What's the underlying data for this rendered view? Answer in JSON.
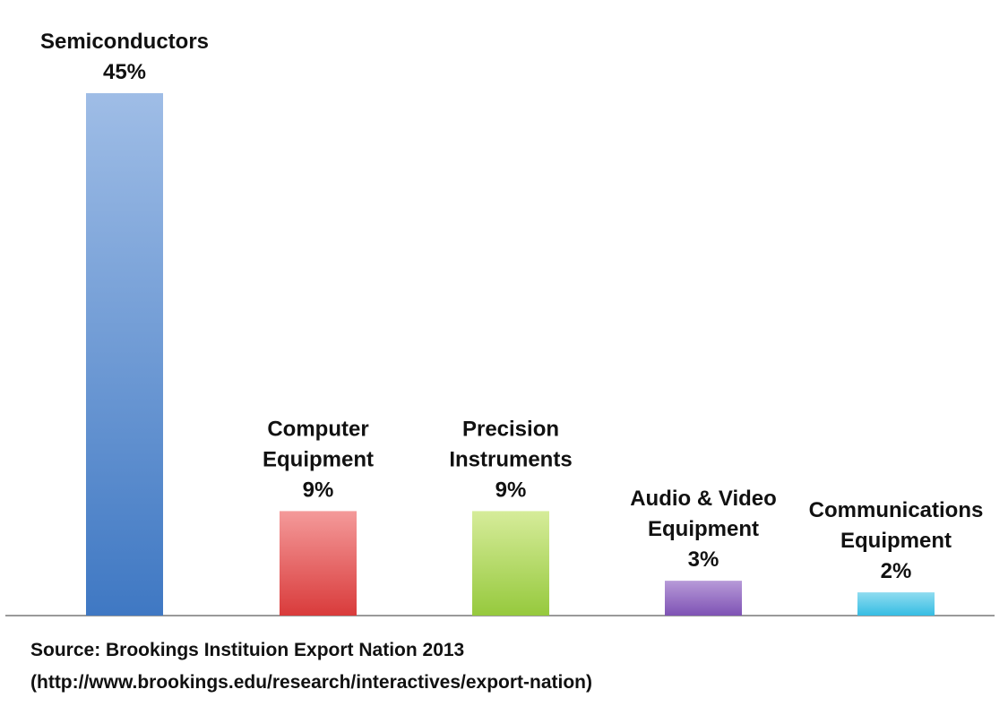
{
  "chart_data": {
    "type": "bar",
    "categories": [
      [
        "Semiconductors"
      ],
      [
        "Computer",
        "Equipment"
      ],
      [
        "Precision",
        "Instruments"
      ],
      [
        "Audio & Video",
        "Equipment"
      ],
      [
        "Communications",
        "Equipment"
      ]
    ],
    "values": [
      45,
      9,
      9,
      3,
      2
    ],
    "value_labels": [
      "45%",
      "9%",
      "9%",
      "3%",
      "2%"
    ],
    "colors": [
      [
        "#9fbde6",
        "#3f78c3"
      ],
      [
        "#f49a9a",
        "#d93b3b"
      ],
      [
        "#d6ec9a",
        "#96c93d"
      ],
      [
        "#b79ad8",
        "#7e52b4"
      ],
      [
        "#8fdcf0",
        "#36bde3"
      ]
    ],
    "ylim": [
      0,
      45
    ],
    "grid": false,
    "legend": "none"
  },
  "source": {
    "line1": "Source: Brookings Instituion Export Nation 2013",
    "line2": "(http://www.brookings.edu/research/interactives/export-nation)"
  }
}
